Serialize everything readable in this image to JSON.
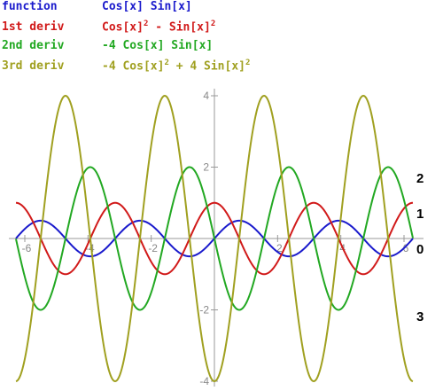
{
  "legend": [
    {
      "name": "function",
      "expr": "Cos[x] Sin[x]",
      "color": "#1a1acc"
    },
    {
      "name": "1st deriv",
      "expr": "Cos[x]^2 - Sin[x]^2",
      "color": "#d11a1a"
    },
    {
      "name": "2nd deriv",
      "expr": "-4 Cos[x] Sin[x]",
      "color": "#22a822"
    },
    {
      "name": "3rd deriv",
      "expr": "-4 Cos[x]^2 + 4 Sin[x]^2",
      "color": "#a0a020"
    }
  ],
  "chart_data": {
    "type": "line",
    "title": "",
    "xlabel": "",
    "ylabel": "",
    "xlim": [
      -6.28,
      6.28
    ],
    "ylim": [
      -4,
      4
    ],
    "x_ticks": [
      -6,
      -4,
      -2,
      2,
      4,
      6
    ],
    "y_ticks": [
      -4,
      -2,
      2,
      4
    ],
    "x_tick_labels": [
      "-6",
      "-4",
      "-2",
      "2",
      "4",
      "6"
    ],
    "y_tick_labels": [
      "-4",
      "-2",
      "2",
      "4"
    ],
    "grid": false,
    "series": [
      {
        "label": "0",
        "color": "#1a1acc",
        "formula": "Cos[x] Sin[x]",
        "x": [
          -6.28,
          -5.5,
          -4.71,
          -3.93,
          -3.14,
          -2.36,
          -1.57,
          -0.79,
          0,
          0.79,
          1.57,
          2.36,
          3.14,
          3.93,
          4.71,
          5.5,
          6.28
        ],
        "y": [
          0,
          0.5,
          0,
          -0.5,
          0,
          0.5,
          0,
          -0.5,
          0,
          0.5,
          0,
          -0.5,
          0,
          0.5,
          0,
          -0.5,
          0
        ]
      },
      {
        "label": "1",
        "color": "#d11a1a",
        "formula": "Cos[x]^2 - Sin[x]^2",
        "x": [
          -6.28,
          -5.5,
          -4.71,
          -3.93,
          -3.14,
          -2.36,
          -1.57,
          -0.79,
          0,
          0.79,
          1.57,
          2.36,
          3.14,
          3.93,
          4.71,
          5.5,
          6.28
        ],
        "y": [
          1,
          0,
          -1,
          0,
          1,
          0,
          -1,
          0,
          1,
          0,
          -1,
          0,
          1,
          0,
          -1,
          0,
          1
        ]
      },
      {
        "label": "2",
        "color": "#22a822",
        "formula": "-4 Cos[x] Sin[x]",
        "x": [
          -6.28,
          -5.5,
          -4.71,
          -3.93,
          -3.14,
          -2.36,
          -1.57,
          -0.79,
          0,
          0.79,
          1.57,
          2.36,
          3.14,
          3.93,
          4.71,
          5.5,
          6.28
        ],
        "y": [
          0,
          -2,
          0,
          2,
          0,
          -2,
          0,
          2,
          0,
          -2,
          0,
          2,
          0,
          -2,
          0,
          2,
          0
        ]
      },
      {
        "label": "3",
        "color": "#a0a020",
        "formula": "-4 Cos[x]^2 + 4 Sin[x]^2",
        "x": [
          -6.28,
          -5.5,
          -4.71,
          -3.93,
          -3.14,
          -2.36,
          -1.57,
          -0.79,
          0,
          0.79,
          1.57,
          2.36,
          3.14,
          3.93,
          4.71,
          5.5,
          6.28
        ],
        "y": [
          -4,
          0,
          4,
          0,
          -4,
          0,
          4,
          0,
          -4,
          0,
          4,
          0,
          -4,
          0,
          4,
          0,
          -4
        ]
      }
    ]
  }
}
